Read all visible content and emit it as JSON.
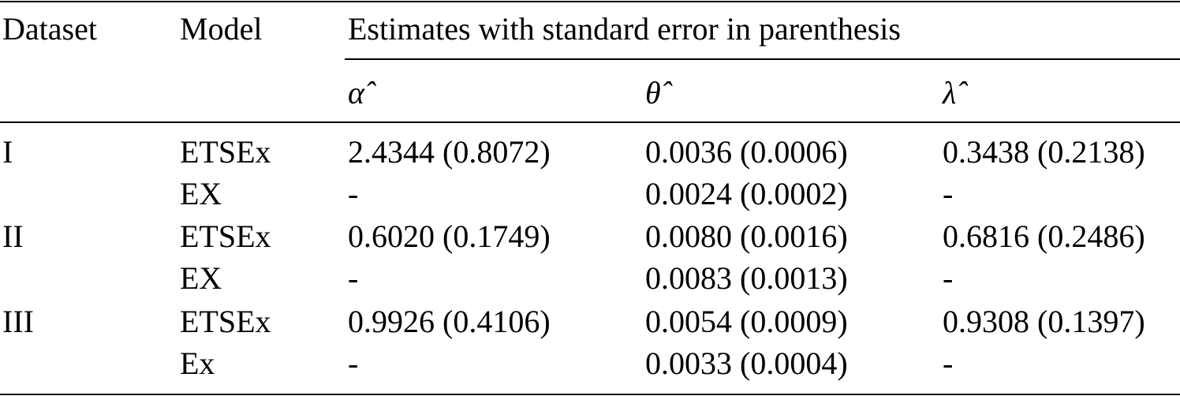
{
  "table": {
    "header": [
      "Dataset",
      "Model",
      "Estimates with standard error in parenthesis"
    ],
    "subheader": [
      "α̂",
      "θ̂",
      "λ̂"
    ],
    "rows": [
      [
        "I",
        "ETSEx",
        "2.4344 (0.8072)",
        "0.0036 (0.0006)",
        "0.3438 (0.2138)"
      ],
      [
        null,
        "EX",
        "-",
        "0.0024 (0.0002)",
        "-"
      ],
      [
        "II",
        "ETSEx",
        "0.6020 (0.1749)",
        "0.0080 (0.0016)",
        "0.6816 (0.2486)"
      ],
      [
        null,
        "EX",
        "-",
        "0.0083 (0.0013)",
        "-"
      ],
      [
        "III",
        "ETSEx",
        "0.9926 (0.4106)",
        "0.0054 (0.0009)",
        "0.9308 (0.1397)"
      ],
      [
        null,
        "Ex",
        "-",
        "0.0033 (0.0004)",
        "-"
      ]
    ]
  }
}
